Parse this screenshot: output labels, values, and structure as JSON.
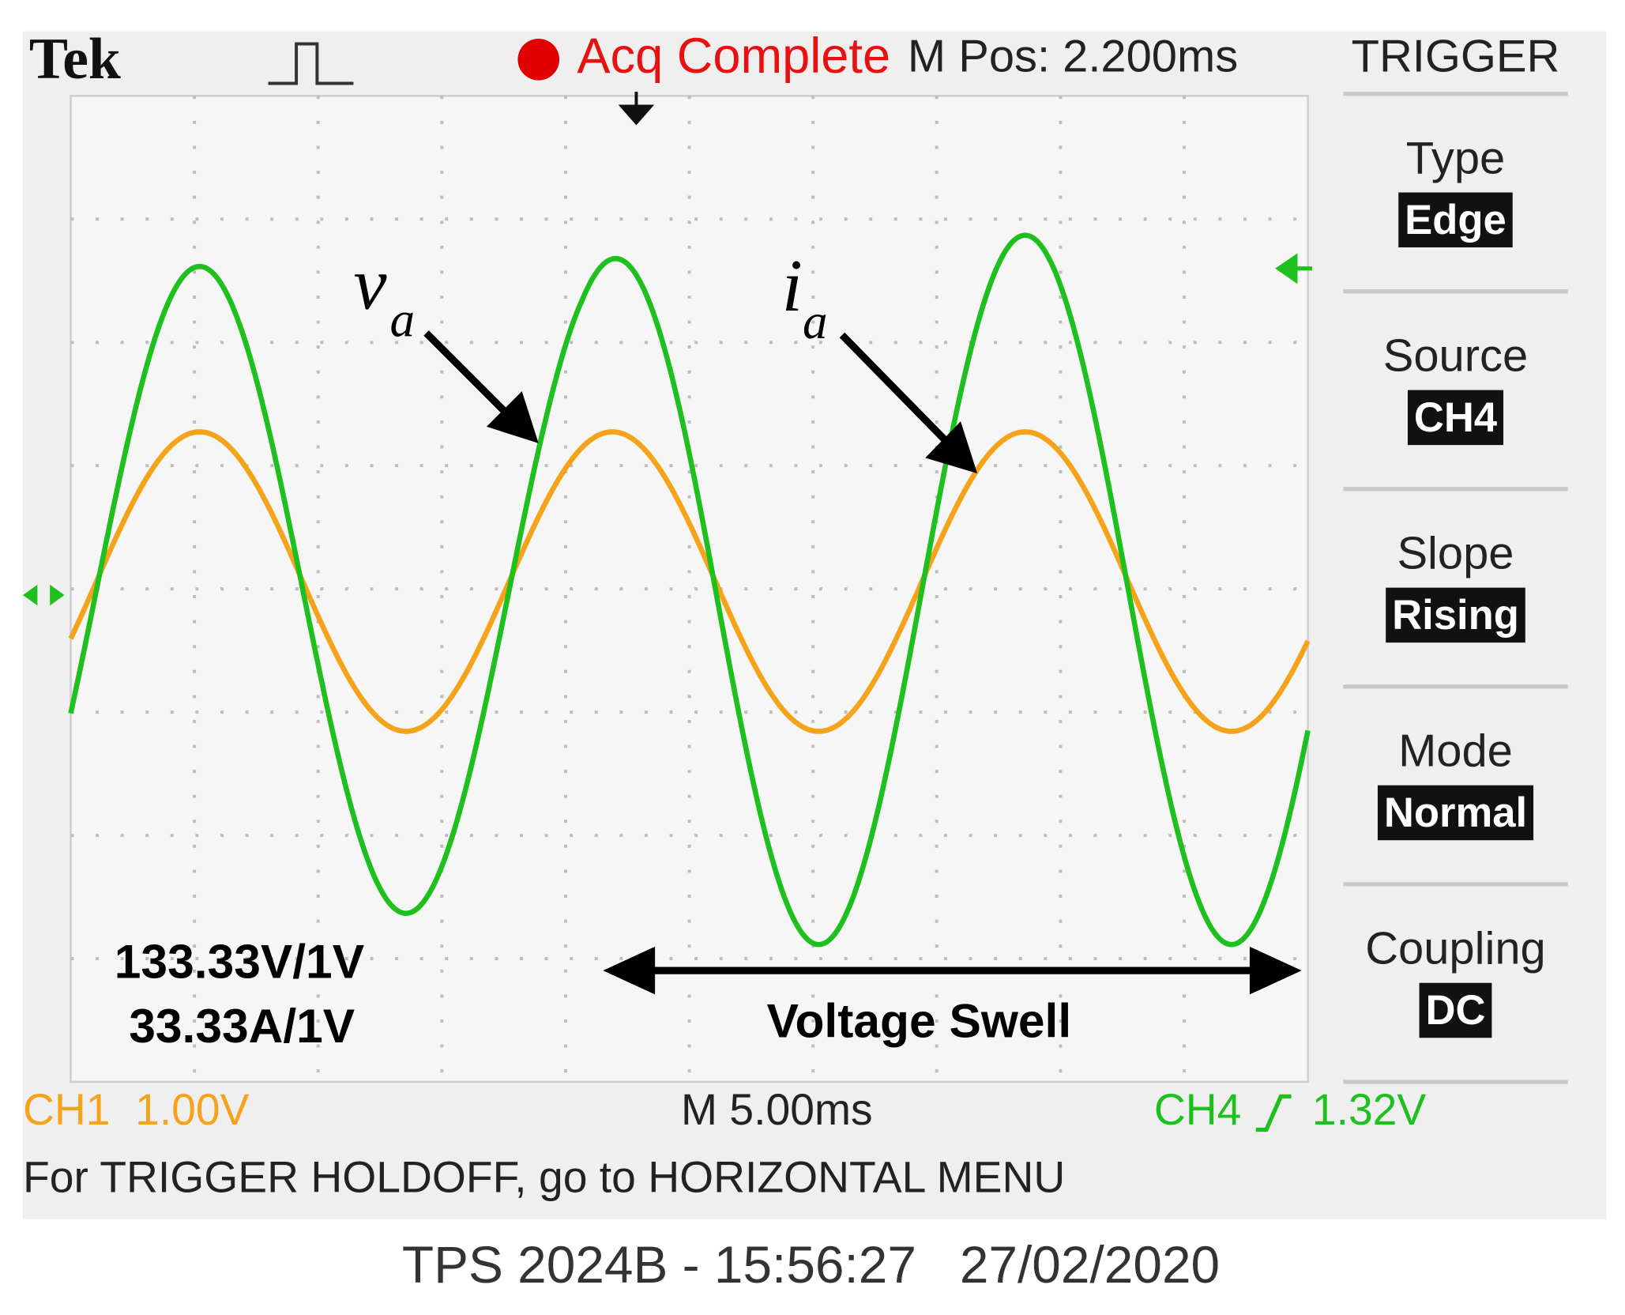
{
  "header": {
    "brand": "Tek",
    "status": "Acq Complete",
    "position": "M Pos: 2.200ms"
  },
  "menu": {
    "title": "TRIGGER",
    "items": [
      {
        "label": "Type",
        "value": "Edge"
      },
      {
        "label": "Source",
        "value": "CH4"
      },
      {
        "label": "Slope",
        "value": "Rising"
      },
      {
        "label": "Mode",
        "value": "Normal"
      },
      {
        "label": "Coupling",
        "value": "DC"
      }
    ]
  },
  "annotations": {
    "voltage": "v",
    "voltage_sub": "a",
    "current": "i",
    "current_sub": "a",
    "scale_voltage": "133.33V/1V",
    "scale_current": "33.33A/1V",
    "event": "Voltage Swell"
  },
  "footer": {
    "ch1": "CH1",
    "ch1_scale": "1.00V",
    "timebase": "M 5.00ms",
    "ch4": "CH4",
    "ch4_level": "1.32V",
    "message": "For TRIGGER HOLDOFF, go to HORIZONTAL MENU",
    "caption": "TPS 2024B - 15:56:27   27/02/2020"
  }
}
